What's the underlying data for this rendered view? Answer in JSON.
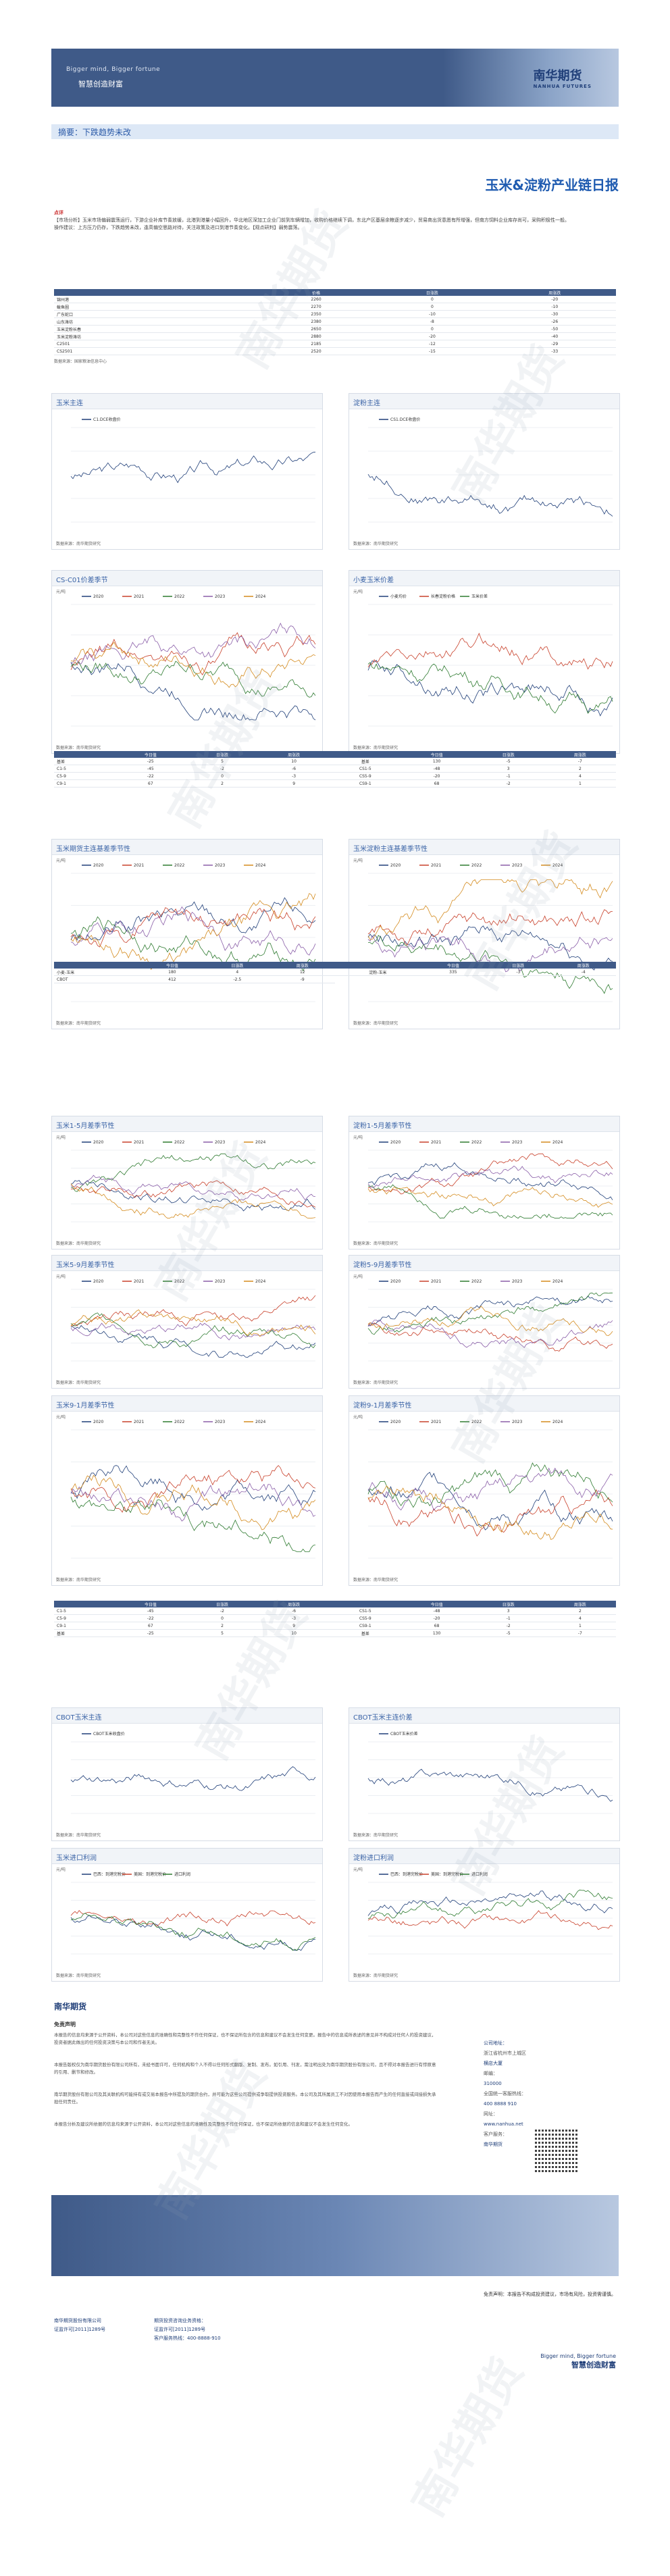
{
  "header": {
    "tagline_en": "Bigger mind, Bigger fortune",
    "tagline_cn": "智慧创造财富",
    "logo_cn": "南华期货",
    "logo_en": "NANHUA FUTURES"
  },
  "summary": {
    "label": "摘要：",
    "text": "下跌趋势未改"
  },
  "report_title": "玉米&淀粉产业链日报",
  "commentary": {
    "label": "点评",
    "p1": "【市场分析】玉米市场偏弱震荡运行，下游企业补库节奏放缓，北港到港量小幅回升，华北地区深加工企业门前到车辆增加，收购价格继续下调，东北产区基层余粮逐步减少，贸易商出货意愿有所增强，但南方饲料企业库存尚可，采购积极性一般。",
    "p2": "操作建议：上方压力仍存，下跌趋势未改，逢高偏空思路对待，关注政策及进口到港节奏变化。【观点研判】弱势震荡。"
  },
  "table1": {
    "cols": [
      "",
      "价格",
      "日涨跌",
      "周涨跌"
    ],
    "rows": [
      [
        "锦州港",
        "2260",
        "0",
        "-20"
      ],
      [
        "鲅鱼圈",
        "2270",
        "0",
        "-10"
      ],
      [
        "广东蛇口",
        "2350",
        "-10",
        "-30"
      ],
      [
        "山东潍坊",
        "2380",
        "-8",
        "-26"
      ],
      [
        "玉米淀粉长春",
        "2650",
        "0",
        "-50"
      ],
      [
        "玉米淀粉潍坊",
        "2880",
        "-20",
        "-40"
      ],
      [
        "C2501",
        "2185",
        "-12",
        "-29"
      ],
      [
        "CS2501",
        "2520",
        "-15",
        "-33"
      ]
    ]
  },
  "table1_source": "数据来源：国家粮油信息中心",
  "charts": [
    {
      "id": "c1",
      "title": "玉米主连",
      "unit": "",
      "legend": [
        "C1.DCE收盘价"
      ],
      "src": "数据来源：南华期货研究",
      "type": "line"
    },
    {
      "id": "c2",
      "title": "淀粉主连",
      "unit": "",
      "legend": [
        "CS1.DCE收盘价"
      ],
      "src": "数据来源：南华期货研究",
      "type": "line"
    },
    {
      "id": "c3",
      "title": "CS-C01价差季节",
      "unit": "元/吨",
      "legend": [
        "2020",
        "2021",
        "2022",
        "2023",
        "2024"
      ],
      "src": "数据来源：南华期货研究",
      "type": "season"
    },
    {
      "id": "c4",
      "title": "小麦玉米价差",
      "unit": "元/吨",
      "legend": [
        "小麦均价",
        "长春淀粉价格",
        "玉米价差"
      ],
      "src": "数据来源：南华期货研究",
      "type": "combo"
    },
    {
      "id": "c5",
      "title": "玉米期货主连基差季节性",
      "unit": "元/吨",
      "legend": [
        "2020",
        "2021",
        "2022",
        "2023",
        "2024"
      ],
      "src": "数据来源：南华期货研究",
      "type": "season"
    },
    {
      "id": "c6",
      "title": "玉米淀粉主连基差季节性",
      "unit": "元/吨",
      "legend": [
        "2020",
        "2021",
        "2022",
        "2023",
        "2024"
      ],
      "src": "数据来源：南华期货研究",
      "type": "season"
    },
    {
      "id": "c7",
      "title": "玉米1-5月差季节性",
      "unit": "元/吨",
      "legend": [
        "2020",
        "2021",
        "2022",
        "2023",
        "2024"
      ],
      "src": "数据来源：南华期货研究",
      "type": "season"
    },
    {
      "id": "c8",
      "title": "淀粉1-5月差季节性",
      "unit": "元/吨",
      "legend": [
        "2020",
        "2021",
        "2022",
        "2023",
        "2024"
      ],
      "src": "数据来源：南华期货研究",
      "type": "season"
    },
    {
      "id": "c9",
      "title": "玉米5-9月差季节性",
      "unit": "元/吨",
      "legend": [
        "2020",
        "2021",
        "2022",
        "2023",
        "2024"
      ],
      "src": "数据来源：南华期货研究",
      "type": "season"
    },
    {
      "id": "c10",
      "title": "淀粉5-9月差季节性",
      "unit": "元/吨",
      "legend": [
        "2020",
        "2021",
        "2022",
        "2023",
        "2024"
      ],
      "src": "数据来源：南华期货研究",
      "type": "season"
    },
    {
      "id": "c11",
      "title": "玉米9-1月差季节性",
      "unit": "元/吨",
      "legend": [
        "2020",
        "2021",
        "2022",
        "2023",
        "2024"
      ],
      "src": "数据来源：南华期货研究",
      "type": "season"
    },
    {
      "id": "c12",
      "title": "淀粉9-1月差季节性",
      "unit": "元/吨",
      "legend": [
        "2020",
        "2021",
        "2022",
        "2023",
        "2024"
      ],
      "src": "数据来源：南华期货研究",
      "type": "season"
    },
    {
      "id": "c13",
      "title": "CBOT玉米主连",
      "unit": "",
      "legend": [
        "CBOT玉米收盘价"
      ],
      "src": "数据来源：南华期货研究",
      "type": "line"
    },
    {
      "id": "c14",
      "title": "CBOT玉米主连价差",
      "unit": "",
      "legend": [
        "CBOT玉米价差"
      ],
      "src": "数据来源：南华期货研究",
      "type": "line"
    },
    {
      "id": "c15",
      "title": "玉米进口利润",
      "unit": "元/吨",
      "legend": [
        "巴西：到港完税价",
        "美国：到港完税价",
        "进口利润"
      ],
      "src": "数据来源：南华期货研究",
      "type": "multi"
    },
    {
      "id": "c16",
      "title": "淀粉进口利润",
      "unit": "元/吨",
      "legend": [
        "巴西：到港完税价",
        "美国：到港完税价",
        "进口利润"
      ],
      "src": "数据来源：南华期货研究",
      "type": "multi"
    }
  ],
  "table2": {
    "cols": [
      "",
      "今日值",
      "日涨跌",
      "周涨跌",
      "",
      "今日值",
      "日涨跌",
      "周涨跌"
    ],
    "rows": [
      [
        "基差",
        "-25",
        "5",
        "10",
        "基差",
        "130",
        "-5",
        "-7"
      ],
      [
        "C1-5",
        "-45",
        "-2",
        "-6",
        "CS1-5",
        "-48",
        "3",
        "2"
      ],
      [
        "C5-9",
        "-22",
        "0",
        "-3",
        "CS5-9",
        "-20",
        "-1",
        "4"
      ],
      [
        "C9-1",
        "67",
        "2",
        "9",
        "CS9-1",
        "68",
        "-2",
        "1"
      ]
    ]
  },
  "table3": {
    "cols": [
      "",
      "今日值",
      "日涨跌",
      "周涨跌",
      "",
      "今日值",
      "日涨跌",
      "周涨跌"
    ],
    "rows": [
      [
        "小麦-玉米",
        "180",
        "4",
        "12",
        "淀粉-玉米",
        "335",
        "-3",
        "-4"
      ],
      [
        "CBOT",
        "412",
        "-2.5",
        "-9"
      ]
    ]
  },
  "table4": {
    "cols": [
      "",
      "今日值",
      "日涨跌",
      "周涨跌",
      "",
      "今日值",
      "日涨跌",
      "周涨跌"
    ],
    "rows": [
      [
        "C1-5",
        "-45",
        "-2",
        "-6",
        "CS1-5",
        "-48",
        "3",
        "2"
      ],
      [
        "C5-9",
        "-22",
        "0",
        "-3",
        "CS5-9",
        "-20",
        "-1",
        "4"
      ],
      [
        "C9-1",
        "67",
        "2",
        "9",
        "CS9-1",
        "68",
        "-2",
        "1"
      ],
      [
        "基差",
        "-25",
        "5",
        "10",
        "基差",
        "130",
        "-5",
        "-7"
      ]
    ]
  },
  "footer": {
    "logo": "南华期货",
    "heading": "免责声明",
    "p1": "本报告的信息均来源于公开资料，本公司对这些信息的准确性和完整性不作任何保证，也不保证所包含的信息和建议不会发生任何变更。报告中的信息或所表述的意见并不构成对任何人的投资建议，投资者据此做出的任何投资决策与本公司和作者无关。",
    "p2": "本报告版权仅为南华期货股份有限公司所有，未经书面许可，任何机构和个人不得以任何形式翻版、复制、发布。如引用、刊发，需注明出处为南华期货股份有限公司，且不得对本报告进行有悖原意的引用、删节和修改。",
    "p3": "南华期货股份有限公司及其关联机构可能持有或交易本报告中所提及的期货合约，并可能为这些公司提供或争取提供投资服务。本公司及其所属员工不对因使用本报告而产生的任何直接或间接损失承担任何责任。",
    "p4": "本报告分析及建议所依据的信息均来源于公开资料，本公司对这些信息的准确性及完整性不作任何保证，也不保证所依据的信息和建议不会发生任何变化。",
    "contact": [
      "公司地址：",
      "浙江省杭州市上城区",
      "横店大厦",
      "邮编：",
      "310000",
      "全国统一客服热线：",
      "400 8888 910",
      "网址：",
      "www.nanhua.net",
      "客户服务：",
      "南华期货"
    ],
    "disclaimer": "免责声明：本报告不构成投资建议，市场有风险，投资需谨慎。",
    "addr1": [
      "南华期货股份有限公司",
      "证监许可[2011]1289号"
    ],
    "addr2": [
      "期货投资咨询业务资格：",
      "证监许可[2011]1289号",
      "客户服务热线：400-8888-910"
    ],
    "tag_en": "Bigger mind, Bigger fortune",
    "tag_cn": "智慧创造财富"
  },
  "watermark": "南华期货",
  "colors": {
    "brand": "#3f5a88",
    "accent": "#1f5bb0",
    "series": [
      "#1f3e78",
      "#c8402a",
      "#2d7a2f",
      "#8a5ea8",
      "#d48b1e"
    ]
  }
}
